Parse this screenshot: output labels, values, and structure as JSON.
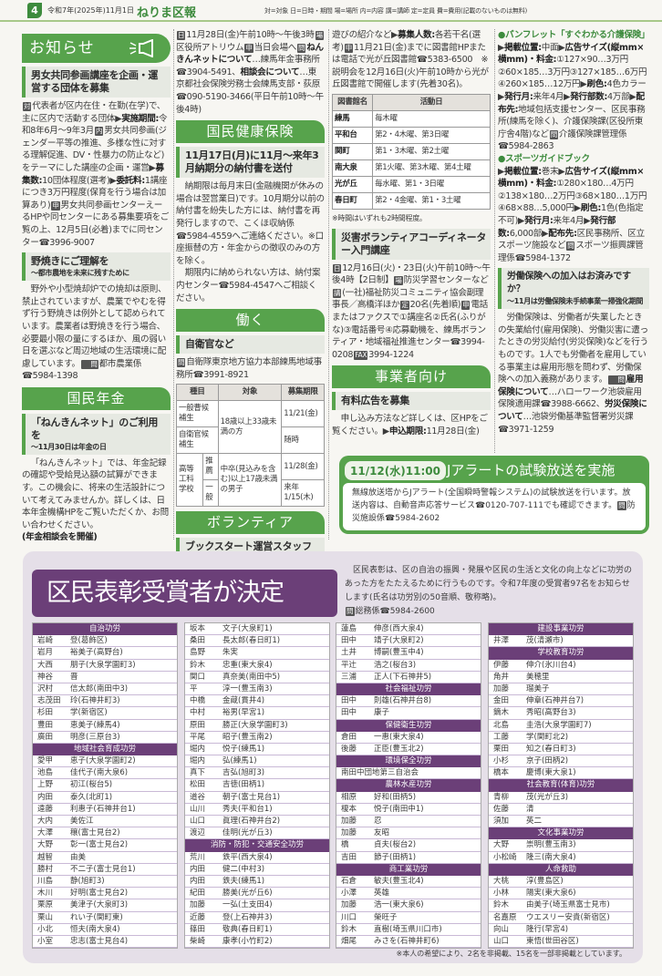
{
  "header": {
    "page": "4",
    "date": "令和7年(2025年)11月1日",
    "title": "ねりま区報",
    "legend": "対=対象 日=日時・期間 場=場所 内=内容 講=講師 定=定員 費=費用(記載のないものは無料)"
  },
  "colors": {
    "green": "#57a34c",
    "purple": "#6b3f78",
    "award_bg": "#e5dfe8"
  },
  "col1": {
    "section": "お知らせ",
    "section_icon": "megaphone-icon",
    "a1": {
      "title": "男女共同参画講座を企画・運営する団体を募集",
      "body": [
        {
          "k": "対"
        },
        {
          "t": "代表者が区内在住・在勤(在学)で、主に区内で活動する団体▶"
        },
        {
          "b": "実施期間:"
        },
        {
          "t": "令和8年6月～9年3月"
        },
        {
          "k": "内"
        },
        {
          "t": "男女共同参画(ジェンダー平等の推進、多様な性に対する理解促進、DV・性暴力の防止など)をテーマにした講座の企画・運営▶"
        },
        {
          "b": "募集数:"
        },
        {
          "t": "10団体程度(選考)▶"
        },
        {
          "b": "委託料:"
        },
        {
          "t": "1講座につき3万円程度(保育を行う場合は加算あり)"
        },
        {
          "k": "申"
        },
        {
          "t": "男女共同参画センターえーるHPや同センターにある募集要項をご覧の上、12月5日(必着)までに同センター☎3996-9007"
        }
      ]
    },
    "a2": {
      "title": "野焼きにご理解を",
      "subtitle": "～都市農地を未来に残すために",
      "body": [
        {
          "t": "野外や小型焼却炉での焼却は原則、禁止されていますが、農業でやむを得ず行う野焼きは例外として認められています。農業者は野焼きを行う場合、必要最小限の量にするほか、風の弱い日を選ぶなど周辺地域の生活環境に配慮しています。"
        },
        {
          "k": "問"
        },
        {
          "t": "都市農業係☎5984-1398"
        }
      ]
    },
    "section2": "国民年金",
    "a3": {
      "title": "「ねんきんネット」のご利用を",
      "subtitle": "～11月30日は年金の日",
      "body": [
        {
          "t": "「ねんきんネット」では、年金記録の確認や受給見込額の試算ができます。この機会に、将来の生活設計について考えてみませんか。詳しくは、日本年金機構HPをご覧いただくか、お問い合わせください。"
        }
      ],
      "bold": "(年金相談会を開催)"
    }
  },
  "col2": {
    "cont": [
      {
        "k": "日"
      },
      {
        "t": "11月28日(金)午前10時～午後3時"
      },
      {
        "k": "場"
      },
      {
        "t": "区役所アトリウム"
      },
      {
        "k": "申"
      },
      {
        "t": "当日会場へ"
      },
      {
        "k": "問"
      },
      {
        "b": "ねんきんネットについて"
      },
      {
        "t": "…練馬年金事務所☎3904-5491、"
      },
      {
        "b": "相談会について"
      },
      {
        "t": "…東京都社会保険労務士会練馬支部・荻原☎090-5190-3466(平日午前10時～午後4時)"
      }
    ],
    "section": "国民健康保険",
    "a1": {
      "title": "11月17日(月)に11月～来年3月納期分の納付書を送付",
      "body": [
        {
          "t": "納期限は毎月末日(金融機関が休みの場合は翌営業日)です。10月期分以前の納付書を紛失した方には、納付書を再発行しますので、こくほ収納係☎5984-4559へご連絡ください。※口座振替の方・年金からの徴収のみの方を除く。"
        }
      ],
      "body2": [
        {
          "t": "期限内に納められない方は、納付案内センター☎5984-4547へご相談ください。"
        }
      ]
    },
    "section2": "働く",
    "a2": {
      "title": "自衛官など",
      "body": [
        {
          "k": "問"
        },
        {
          "t": "自衛隊東京地方協力本部練馬地域事務所☎3991-8921"
        }
      ],
      "table": {
        "headers": [
          "種目",
          "対象",
          "募集期限"
        ],
        "r1": [
          "一般曹候補生",
          "18歳以上33歳未満の方",
          "11/21(金)"
        ],
        "r2": [
          "自衛官候補生",
          "随時"
        ],
        "r3": [
          "高等工科学校",
          "推薦",
          "中卒(見込みを含む)以上17歳未満の男子",
          "11/28(金)"
        ],
        "r4": [
          "一般",
          "来年1/15(木)"
        ]
      }
    },
    "section3": "ボランティア",
    "a3": {
      "title": "ブックスタート運営スタッフ",
      "body": [
        {
          "k": "対"
        },
        {
          "t": "20歳以上の方"
        },
        {
          "k": "内"
        },
        {
          "t": "0～1歳児と保護者への絵本の配布や読み聞かせ、手"
        }
      ]
    }
  },
  "col3": {
    "cont": [
      {
        "t": "遊びの紹介など▶"
      },
      {
        "b": "募集人数:"
      },
      {
        "t": "各若干名(選考)"
      },
      {
        "k": "申"
      },
      {
        "t": "11月21日(金)までに図書館HPまたは電話で光が丘図書館☎5383-6500　※説明会を12月16日(火)午前10時から光が丘図書館で開催します(先着30名)。"
      }
    ],
    "table": {
      "headers": [
        "図書館名",
        "活動日"
      ],
      "rows": [
        [
          "練馬",
          "毎木曜"
        ],
        [
          "平和台",
          "第2・4木曜、第3日曜"
        ],
        [
          "関町",
          "第1・3木曜、第2土曜"
        ],
        [
          "南大泉",
          "第1火曜、第3木曜、第4土曜"
        ],
        [
          "光が丘",
          "毎水曜、第1・3日曜"
        ],
        [
          "春日町",
          "第2・4金曜、第1・3土曜"
        ]
      ]
    },
    "note": "※時間はいずれも2時間程度。",
    "a1": {
      "title": "災害ボランティアコーディネーター入門講座",
      "body": [
        {
          "k": "日"
        },
        {
          "t": "12月16日(火)・23日(火)午前10時～午後4時【2日制】"
        },
        {
          "k": "場"
        },
        {
          "t": "防災学習センターなど"
        },
        {
          "k": "講"
        },
        {
          "t": "(一社)福祉防災コミュニティ協会副理事長／高橋洋ほか"
        },
        {
          "k": "定"
        },
        {
          "t": "20名(先着順)"
        },
        {
          "k": "申"
        },
        {
          "t": "電話またはファクスで①講座名②氏名(ふりがな)③電話番号④応募動機を、練馬ボランティア・地域福祉推進センター☎3994-0208"
        },
        {
          "k": "FAX"
        },
        {
          "t": "3994-1224"
        }
      ]
    },
    "section": "事業者向け",
    "a2": {
      "title": "有料広告を募集",
      "body": [
        {
          "t": "申し込み方法など詳しくは、区HPをご覧ください。▶"
        },
        {
          "b": "申込期限:"
        },
        {
          "t": "11月28日(金)"
        }
      ]
    }
  },
  "col4": {
    "p1_title": "●パンフレット「すぐわかる介護保険」",
    "p1": [
      {
        "t": "▶"
      },
      {
        "b": "掲載位置:"
      },
      {
        "t": "中面▶"
      },
      {
        "b": "広告サイズ(縦mm×横mm)・料金:"
      },
      {
        "t": "①127×90…3万円②60×185…3万円③127×185…6万円④260×185…12万円▶"
      },
      {
        "b": "刷色:"
      },
      {
        "t": "4色カラー▶"
      },
      {
        "b": "発行月:"
      },
      {
        "t": "来年4月▶"
      },
      {
        "b": "発行部数:"
      },
      {
        "t": "4万部▶"
      },
      {
        "b": "配布先:"
      },
      {
        "t": "地域包括支援センター、区民事務所(練馬を除く)、介護保険課(区役所東庁舎4階)など"
      },
      {
        "k": "問"
      },
      {
        "t": "介護保険課管理係☎5984-2863"
      }
    ],
    "p2_title": "●スポーツガイドブック",
    "p2": [
      {
        "t": "▶"
      },
      {
        "b": "掲載位置:"
      },
      {
        "t": "巻末▶"
      },
      {
        "b": "広告サイズ(縦mm×横mm)・料金:"
      },
      {
        "t": "①280×180…4万円②138×180…2万円③68×180…1万円④68×88…5,000円▶"
      },
      {
        "b": "刷色:"
      },
      {
        "t": "1色(色指定不可)▶"
      },
      {
        "b": "発行月:"
      },
      {
        "t": "来年4月▶"
      },
      {
        "b": "発行部数:"
      },
      {
        "t": "6,000部▶"
      },
      {
        "b": "配布先:"
      },
      {
        "t": "区民事務所、区立スポーツ施設など"
      },
      {
        "k": "問"
      },
      {
        "t": "スポーツ振興課管理係☎5984-1372"
      }
    ],
    "a1": {
      "title": "労働保険への加入はお済みですか？",
      "subtitle": "～11月は労働保険未手続事業一掃強化期間",
      "body": [
        {
          "t": "労働保険は、労働者が失業したときの失業給付(雇用保険)、労働災害に遭ったときの労災給付(労災保険)などを行うものです。1人でも労働者を雇用している事業主は雇用形態を問わず、労働保険への加入義務があります。"
        },
        {
          "k": "問"
        },
        {
          "b": "雇用保険について"
        },
        {
          "t": "…ハローワーク池袋雇用保険適用課☎3988-6662、"
        },
        {
          "b": "労災保険について"
        },
        {
          "t": "…池袋労働基準監督署労災課☎3971-1259"
        }
      ]
    }
  },
  "jalert": {
    "badge": "11/12(水)11:00",
    "title": "Jアラートの試験放送を実施",
    "body": [
      {
        "t": "無線放送塔からJアラート(全国瞬時警報システム)の試験放送を行います。放送内容は、自動音声応答サービス☎0120-707-111でも確認できます。"
      },
      {
        "k": "問"
      },
      {
        "t": "防災施設係☎5984-2602"
      }
    ]
  },
  "award": {
    "title": "区民表彰受賞者が決定",
    "intro": [
      {
        "t": "区民表彰は、区の自治の振興・発展や区民の生活と文化の向上などに功労のあった方をたたえるために行うものです。令和7年度の受賞者97名をお知らせします(氏名は功労別の50音順、敬称略)。"
      }
    ],
    "contact": [
      {
        "k": "問"
      },
      {
        "t": "総務係☎5984-2600"
      }
    ],
    "note": "※本人の希望により、2名を非掲載、15名を一部非掲載としています。",
    "columns": [
      [
        {
          "h": "自治功労"
        },
        {
          "n": "岩崎",
          "a": "登(葛飾区)"
        },
        {
          "n": "岩月",
          "a": "裕美子(高野台)"
        },
        {
          "n": "大西",
          "a": "朋子(大泉学園町3)"
        },
        {
          "n": "神谷",
          "a": "晋"
        },
        {
          "n": "沢村",
          "a": "信太郎(南田中3)"
        },
        {
          "n": "志茂田",
          "a": "玲(石神井町3)"
        },
        {
          "n": "杉田",
          "a": "学(新宿区)"
        },
        {
          "n": "豊田",
          "a": "恵美子(練馬4)"
        },
        {
          "n": "廣田",
          "a": "明彦(三原台3)"
        },
        {
          "h": "地域社会育成功労"
        },
        {
          "n": "愛甲",
          "a": "恵子(大泉学園町2)"
        },
        {
          "n": "池島",
          "a": "佳代子(南大泉6)"
        },
        {
          "n": "上野",
          "a": "初江(桜台5)"
        },
        {
          "n": "内田",
          "a": "泰久(北町1)"
        },
        {
          "n": "遠藤",
          "a": "利惠子(石神井台1)"
        },
        {
          "n": "大内",
          "a": "美佐江"
        },
        {
          "n": "大澤",
          "a": "穣(富士見台2)"
        },
        {
          "n": "大野",
          "a": "彰一(富士見台2)"
        },
        {
          "n": "越智",
          "a": "由美"
        },
        {
          "n": "勝村",
          "a": "不二子(富士見台1)"
        },
        {
          "n": "川島",
          "a": "静(旭町3)"
        },
        {
          "n": "木川",
          "a": "好明(富士見台2)"
        },
        {
          "n": "栗原",
          "a": "美津子(大泉町3)"
        },
        {
          "n": "栗山",
          "a": "れい子(関町東)"
        },
        {
          "n": "小北",
          "a": "恒夫(南大泉4)"
        },
        {
          "n": "小室",
          "a": "忠志(富士見台4)"
        }
      ],
      [
        {
          "n": "坂本",
          "a": "文子(大泉町1)"
        },
        {
          "n": "桑田",
          "a": "長太郎(春日町1)"
        },
        {
          "n": "島野",
          "a": "朱実"
        },
        {
          "n": "鈴木",
          "a": "忠重(東大泉4)"
        },
        {
          "n": "関口",
          "a": "真奈美(南田中5)"
        },
        {
          "n": "平",
          "a": "淳一(豊玉南3)"
        },
        {
          "n": "中橋",
          "a": "金蔵(貫井4)"
        },
        {
          "n": "中村",
          "a": "裕男(早宮1)"
        },
        {
          "n": "原田",
          "a": "勝正(大泉学園町3)"
        },
        {
          "n": "平尾",
          "a": "昭子(豊玉南2)"
        },
        {
          "n": "堀内",
          "a": "悦子(練馬1)"
        },
        {
          "n": "堀内",
          "a": "弘(練馬1)"
        },
        {
          "n": "真下",
          "a": "吉弘(旭町3)"
        },
        {
          "n": "松田",
          "a": "吉徳(田柄1)"
        },
        {
          "n": "道谷",
          "a": "朝子(富士見台1)"
        },
        {
          "n": "山川",
          "a": "秀夫(平和台1)"
        },
        {
          "n": "山口",
          "a": "眞理(石神井台2)"
        },
        {
          "n": "渡辺",
          "a": "佳明(光が丘3)"
        },
        {
          "h": "消防・防犯・交通安全功労"
        },
        {
          "n": "荒川",
          "a": "鉄平(西大泉4)"
        },
        {
          "n": "内田",
          "a": "健二(中村3)"
        },
        {
          "n": "内田",
          "a": "鉄夫(練馬1)"
        },
        {
          "n": "紀田",
          "a": "勝美(光が丘6)"
        },
        {
          "n": "加藤",
          "a": "一弘(土支田4)"
        },
        {
          "n": "近藤",
          "a": "登(上石神井3)"
        },
        {
          "n": "篠田",
          "a": "敬典(春日町1)"
        },
        {
          "n": "柴崎",
          "a": "康孝(小竹町2)"
        }
      ],
      [
        {
          "n": "蓮島",
          "a": "伸彦(西大泉4)"
        },
        {
          "n": "田中",
          "a": "靖子(大泉町2)"
        },
        {
          "n": "土井",
          "a": "博嗣(豊玉中4)"
        },
        {
          "n": "平辻",
          "a": "浩之(桜台3)"
        },
        {
          "n": "三浦",
          "a": "正人(下石神井5)"
        },
        {
          "h": "社会福祉功労"
        },
        {
          "n": "田中",
          "a": "則雄(石神井台8)"
        },
        {
          "n": "田中",
          "a": "康子"
        },
        {
          "h": "保健衛生功労"
        },
        {
          "n": "倉田",
          "a": "一惠(東大泉4)"
        },
        {
          "n": "後藤",
          "a": "正臣(豊玉北2)"
        },
        {
          "h": "環境保全功労"
        },
        {
          "n": "南田中団地第三自治会",
          "a": ""
        },
        {
          "h": "農林水産功労"
        },
        {
          "n": "相原",
          "a": "好和(田柄5)"
        },
        {
          "n": "榎本",
          "a": "悦子(南田中1)"
        },
        {
          "n": "加藤",
          "a": "忍"
        },
        {
          "n": "加藤",
          "a": "友昭"
        },
        {
          "n": "橋",
          "a": "貞夫(桜台2)"
        },
        {
          "n": "吉田",
          "a": "節子(田柄1)"
        },
        {
          "h": "商工業功労"
        },
        {
          "n": "石倉",
          "a": "敏夫(豊玉北4)"
        },
        {
          "n": "小澤",
          "a": "英雄"
        },
        {
          "n": "加藤",
          "a": "浩一(東大泉6)"
        },
        {
          "n": "川口",
          "a": "榮旺子"
        },
        {
          "n": "鈴木",
          "a": "直樹(埼玉県川口市)"
        },
        {
          "n": "畑尾",
          "a": "みさを(石神井町6)"
        }
      ],
      [
        {
          "h": "建設事業功労"
        },
        {
          "n": "井澤",
          "a": "茂(清瀬市)"
        },
        {
          "h": "学校教育功労"
        },
        {
          "n": "伊藤",
          "a": "伸介(氷川台4)"
        },
        {
          "n": "角井",
          "a": "美穂里"
        },
        {
          "n": "加藤",
          "a": "瑠美子"
        },
        {
          "n": "金田",
          "a": "伸章(石神井台7)"
        },
        {
          "n": "鏑木",
          "a": "秀昭(高野台3)"
        },
        {
          "n": "北島",
          "a": "圭浩(大泉学園町7)"
        },
        {
          "n": "工藤",
          "a": "学(関町北2)"
        },
        {
          "n": "栗田",
          "a": "知之(春日町3)"
        },
        {
          "n": "小杉",
          "a": "京子(田柄2)"
        },
        {
          "n": "橋本",
          "a": "慶博(東大泉1)"
        },
        {
          "h": "社会教育(体育)功労"
        },
        {
          "n": "青柳",
          "a": "茂(光が丘3)"
        },
        {
          "n": "佐藤",
          "a": "清"
        },
        {
          "n": "須加",
          "a": "英二"
        },
        {
          "h": "文化事業功労"
        },
        {
          "n": "大野",
          "a": "崇明(豊玉南3)"
        },
        {
          "n": "小松崎",
          "a": "隆三(南大泉4)"
        },
        {
          "h": "人命救助"
        },
        {
          "n": "大桃",
          "a": "淳(豊島区)"
        },
        {
          "n": "小林",
          "a": "陽実(東大泉6)"
        },
        {
          "n": "鈴木",
          "a": "由美子(埼玉県富士見市)"
        },
        {
          "n": "名嘉原",
          "a": "ウエスリー安貴(新宿区)"
        },
        {
          "n": "向山",
          "a": "隆行(早宮4)"
        },
        {
          "n": "山口",
          "a": "東悟(世田谷区)"
        }
      ]
    ]
  }
}
